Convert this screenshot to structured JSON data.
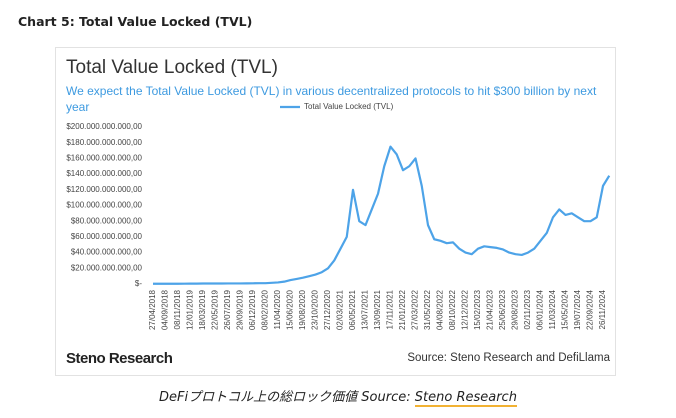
{
  "header": {
    "title": "Chart 5: Total Value Locked (TVL)"
  },
  "chart_data": {
    "type": "line",
    "title": "Total Value Locked (TVL)",
    "subtitle": "We expect the Total Value Locked (TVL) in various decentralized protocols to hit $300 billion by next year",
    "categories": [
      "27/04/2018",
      null,
      "04/09/2018",
      null,
      "08/11/2018",
      null,
      "12/01/2019",
      null,
      "18/03/2019",
      null,
      "22/05/2019",
      null,
      "26/07/2019",
      null,
      "29/09/2019",
      null,
      "06/12/2019",
      null,
      "08/02/2020",
      null,
      "11/04/2020",
      null,
      "15/06/2020",
      null,
      "19/08/2020",
      null,
      "23/10/2020",
      null,
      "27/12/2020",
      null,
      "02/03/2021",
      null,
      "06/05/2021",
      null,
      "13/07/2021",
      null,
      "13/09/2021",
      null,
      "17/11/2021",
      null,
      "21/01/2022",
      null,
      "27/03/2022",
      null,
      "31/05/2022",
      null,
      "04/08/2022",
      null,
      "08/10/2022",
      null,
      "12/12/2022",
      null,
      "15/02/2023",
      null,
      "21/04/2023",
      null,
      "25/06/2023",
      null,
      "29/08/2023",
      null,
      "02/11/2023",
      null,
      "06/01/2024",
      null,
      "11/03/2024",
      null,
      "15/05/2024",
      null,
      "19/07/2024",
      null,
      "22/09/2024",
      null,
      "26/11/2024",
      null
    ],
    "series": [
      {
        "name": "Total Value Locked (TVL)",
        "color": "#4da3e8",
        "values": [
          300000000,
          300000000,
          300000000,
          300000000,
          300000000,
          400000000,
          500000000,
          500000000,
          600000000,
          600000000,
          600000000,
          600000000,
          700000000,
          700000000,
          700000000,
          800000000,
          900000000,
          1000000000,
          1000000000,
          1500000000,
          2000000000,
          3000000000,
          5000000000,
          6500000000,
          8000000000,
          10000000000,
          12000000000,
          15000000000,
          20000000000,
          30000000000,
          45000000000,
          60000000000,
          120000000000,
          80000000000,
          75000000000,
          95000000000,
          115000000000,
          150000000000,
          175000000000,
          165000000000,
          145000000000,
          150000000000,
          160000000000,
          125000000000,
          75000000000,
          57000000000,
          55000000000,
          52000000000,
          53000000000,
          45000000000,
          40000000000,
          38000000000,
          45000000000,
          48000000000,
          47000000000,
          46000000000,
          44000000000,
          40000000000,
          38000000000,
          37000000000,
          40000000000,
          45000000000,
          55000000000,
          65000000000,
          85000000000,
          95000000000,
          88000000000,
          90000000000,
          85000000000,
          80000000000,
          80000000000,
          85000000000,
          125000000000,
          138000000000
        ]
      }
    ],
    "ylim": [
      0,
      200000000000
    ],
    "yticks": [
      {
        "value": 0,
        "label": "$-"
      },
      {
        "value": 20000000000,
        "label": "$20.000.000.000,00"
      },
      {
        "value": 40000000000,
        "label": "$40.000.000.000,00"
      },
      {
        "value": 60000000000,
        "label": "$60.000.000.000,00"
      },
      {
        "value": 80000000000,
        "label": "$80.000.000.000,00"
      },
      {
        "value": 100000000000,
        "label": "$100.000.000.000,00"
      },
      {
        "value": 120000000000,
        "label": "$120.000.000.000,00"
      },
      {
        "value": 140000000000,
        "label": "$140.000.000.000,00"
      },
      {
        "value": 160000000000,
        "label": "$160.000.000.000,00"
      },
      {
        "value": 180000000000,
        "label": "$180.000.000.000,00"
      },
      {
        "value": 200000000000,
        "label": "$200.000.000.000,00"
      }
    ],
    "grid": false,
    "legend": "top",
    "logo": "Steno Research",
    "source": "Source: Steno Research and DefiLlama"
  },
  "caption": {
    "text": "DeFiプロトコル上の総ロック価値",
    "source_label": "Source:",
    "source": "Steno Research"
  }
}
